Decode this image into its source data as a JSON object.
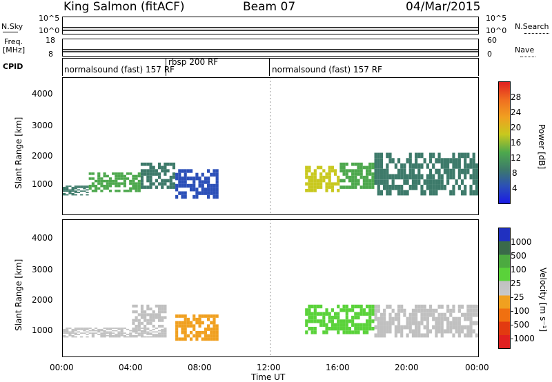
{
  "header": {
    "station": "King Salmon (fitACF)",
    "beam": "Beam 07",
    "date": "04/Mar/2015"
  },
  "strips": {
    "nsky_label": "N.Sky",
    "nsky_ticks": [
      "10^5",
      "10^0"
    ],
    "nsearch_label": "N.Search",
    "nsearch_ticks": [
      "10^5",
      "10^0"
    ],
    "freq_label_1": "Freq.",
    "freq_label_2": "[MHz]",
    "freq_ticks": [
      "18",
      "8"
    ],
    "nave_label": "Nave",
    "nave_ticks": [
      "60",
      "0"
    ],
    "cpid_label": "CPID",
    "cpid_modes": [
      "normalsound (fast) 157 RF",
      "rbsp 200 RF",
      "normalsound (fast) 157 RF"
    ]
  },
  "chart_data": [
    {
      "type": "heatmap",
      "panel": "power",
      "ylabel": "Slant Range [km]",
      "y_ticks": [
        "1000",
        "2000",
        "3000",
        "4000"
      ],
      "ylim": [
        300,
        4500
      ],
      "colorbar_label": "Power [dB]",
      "colorbar_ticks": [
        "4",
        "8",
        "12",
        "16",
        "20",
        "24",
        "28"
      ],
      "colors": [
        "#1a1ae6",
        "#2b4fb8",
        "#3d7a6a",
        "#4da84d",
        "#c8c81e",
        "#f0a020",
        "#f07020",
        "#e02020"
      ],
      "regions": [
        {
          "t0": 0.0,
          "t1": 1.5,
          "r0": 900,
          "r1": 1200,
          "level": 2
        },
        {
          "t0": 1.5,
          "t1": 4.5,
          "r0": 1000,
          "r1": 1600,
          "level": 3
        },
        {
          "t0": 4.5,
          "t1": 6.5,
          "r0": 1100,
          "r1": 1900,
          "level": 2
        },
        {
          "t0": 6.5,
          "t1": 9.0,
          "r0": 800,
          "r1": 1700,
          "level": 1
        },
        {
          "t0": 14.0,
          "t1": 16.0,
          "r0": 1000,
          "r1": 1800,
          "level": 4
        },
        {
          "t0": 16.0,
          "t1": 18.0,
          "r0": 1100,
          "r1": 1900,
          "level": 3
        },
        {
          "t0": 18.0,
          "t1": 24.0,
          "r0": 900,
          "r1": 2200,
          "level": 2
        }
      ]
    },
    {
      "type": "heatmap",
      "panel": "velocity",
      "ylabel": "Slant Range [km]",
      "y_ticks": [
        "1000",
        "2000",
        "3000",
        "4000"
      ],
      "ylim": [
        300,
        4500
      ],
      "xlabel": "Time UT",
      "x_ticks": [
        "00:00",
        "04:00",
        "08:00",
        "12:00",
        "16:00",
        "20:00",
        "00:00"
      ],
      "colorbar_label": "Velocity [m s⁻¹]",
      "colorbar_ticks": [
        "1000",
        "500",
        "100",
        "25",
        "-25",
        "-100",
        "-500",
        "-1000"
      ],
      "colors": [
        "#2030c0",
        "#3a6a4a",
        "#4caa40",
        "#5ad23a",
        "#c0c0c0",
        "#c8c8c8",
        "#f0a020",
        "#f07010",
        "#e02020"
      ],
      "regions": [
        {
          "t0": 0.0,
          "t1": 6.0,
          "r0": 900,
          "r1": 1200,
          "color": "#c0c0c0"
        },
        {
          "t0": 4.0,
          "t1": 6.0,
          "r0": 1200,
          "r1": 1900,
          "color": "#c0c0c0"
        },
        {
          "t0": 6.5,
          "t1": 9.0,
          "r0": 800,
          "r1": 1600,
          "color": "#f0a020"
        },
        {
          "t0": 14.0,
          "t1": 18.0,
          "r0": 1000,
          "r1": 1900,
          "color": "#5ad23a"
        },
        {
          "t0": 18.0,
          "t1": 24.0,
          "r0": 900,
          "r1": 1900,
          "color": "#c0c0c0"
        }
      ]
    }
  ]
}
